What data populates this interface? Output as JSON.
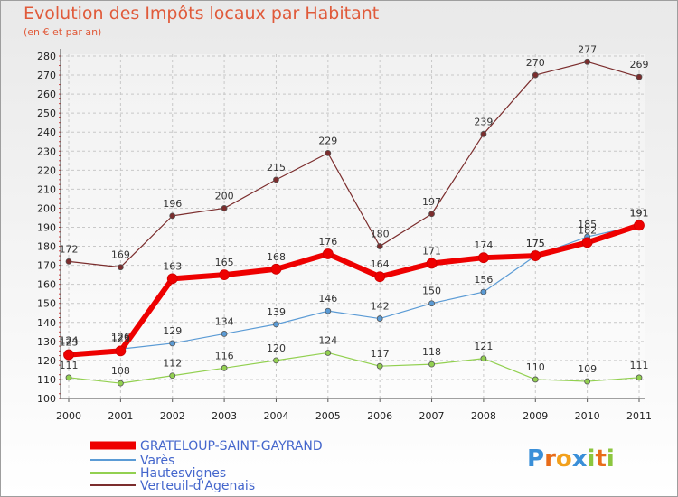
{
  "chart_data": {
    "type": "line",
    "title": "Evolution des Impôts locaux par Habitant",
    "subtitle": "(en € et par an)",
    "categories": [
      "2000",
      "2001",
      "2002",
      "2003",
      "2004",
      "2005",
      "2006",
      "2007",
      "2008",
      "2009",
      "2010",
      "2011"
    ],
    "ylim": [
      100,
      280
    ],
    "yticks": [
      100,
      110,
      120,
      130,
      140,
      150,
      160,
      170,
      180,
      190,
      200,
      210,
      220,
      230,
      240,
      250,
      260,
      270,
      280
    ],
    "grid": true,
    "legend_position": "bottom-left",
    "series": [
      {
        "name": "GRATELOUP-SAINT-GAYRAND",
        "color": "#ee0000",
        "values": [
          123,
          125,
          163,
          165,
          168,
          176,
          164,
          171,
          174,
          175,
          182,
          191
        ],
        "labels": [
          "123",
          "125",
          "163",
          "165",
          "168",
          "176",
          "164",
          "171",
          "174",
          "175",
          "182",
          "191"
        ]
      },
      {
        "name": "Varès",
        "color": "#5b9bd5",
        "values": [
          124,
          126,
          129,
          134,
          139,
          146,
          142,
          150,
          156,
          175,
          185,
          191
        ],
        "labels": [
          "124",
          "126",
          "129",
          "134",
          "139",
          "146",
          "142",
          "150",
          "156",
          "175",
          "185",
          "191"
        ]
      },
      {
        "name": "Hautesvignes",
        "color": "#92d050",
        "values": [
          111,
          108,
          112,
          116,
          120,
          124,
          117,
          118,
          121,
          110,
          109,
          111
        ],
        "labels": [
          "111",
          "108",
          "112",
          "116",
          "120",
          "124",
          "117",
          "118",
          "121",
          "110",
          "109",
          "111"
        ]
      },
      {
        "name": "Verteuil-d'Agenais",
        "color": "#7b2d2d",
        "values": [
          172,
          169,
          196,
          200,
          215,
          229,
          180,
          197,
          239,
          270,
          277,
          269
        ],
        "labels": [
          "172",
          "169",
          "196",
          "200",
          "215",
          "229",
          "180",
          "197",
          "239",
          "270",
          "277",
          "269"
        ]
      }
    ]
  },
  "logo": {
    "text": "Proxiti",
    "letters": [
      "P",
      "r",
      "o",
      "x",
      "i",
      "t",
      "i"
    ],
    "colors": [
      "#3a8fd8",
      "#e86c1a",
      "#f2a01c",
      "#3a8fd8",
      "#8cc63e",
      "#e86c1a",
      "#8cc63e"
    ]
  }
}
